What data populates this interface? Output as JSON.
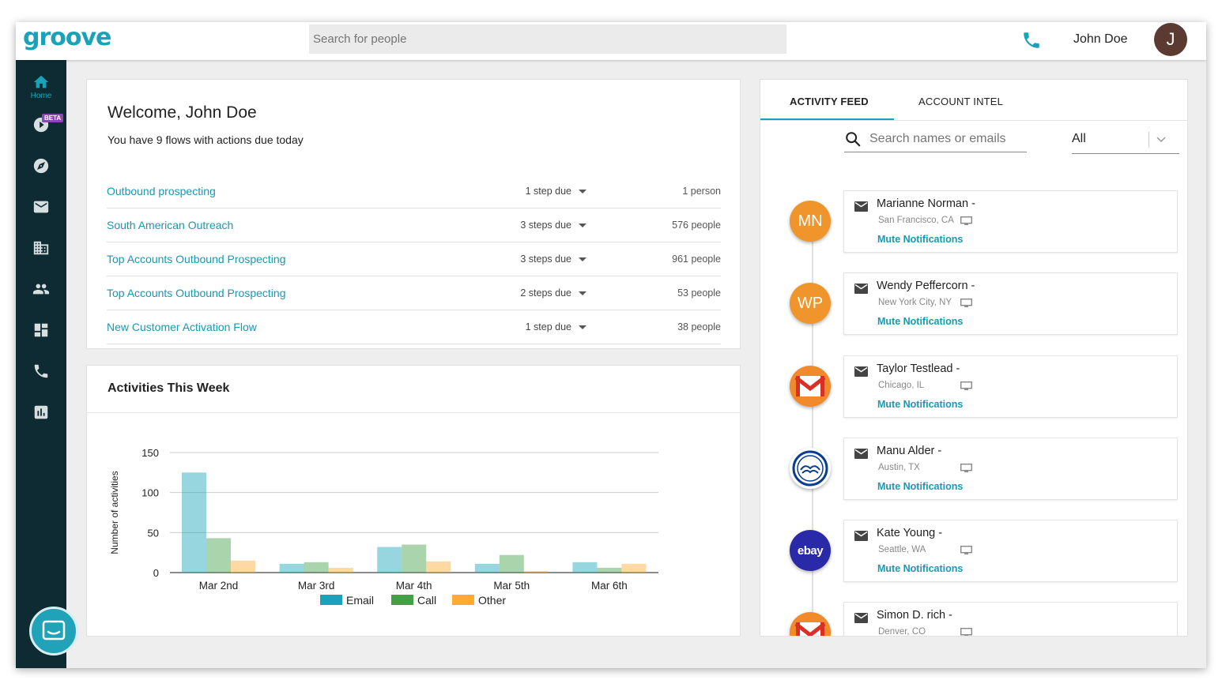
{
  "app": {
    "logo": "groove"
  },
  "header": {
    "search_placeholder": "Search for people",
    "user_name": "John Doe",
    "avatar_initial": "J"
  },
  "sidebar": {
    "home_label": "Home",
    "beta_label": "BETA"
  },
  "welcome": {
    "title": "Welcome, John Doe",
    "subtitle": "You have 9 flows with actions due today",
    "flows": [
      {
        "name": "Outbound prospecting",
        "steps": "1 step due",
        "people": "1 person"
      },
      {
        "name": "South American Outreach",
        "steps": "3 steps due",
        "people": "576 people"
      },
      {
        "name": "Top Accounts Outbound Prospecting",
        "steps": "3 steps due",
        "people": "961 people"
      },
      {
        "name": "Top Accounts Outbound Prospecting",
        "steps": "2 steps due",
        "people": "53 people"
      },
      {
        "name": "New Customer Activation Flow",
        "steps": "1 step due",
        "people": "38 people"
      }
    ]
  },
  "activity": {
    "title": "Activities This Week"
  },
  "chart_data": {
    "type": "bar",
    "title": "",
    "xlabel": "",
    "ylabel": "Number of activities",
    "categories": [
      "Mar 2nd",
      "Mar 3rd",
      "Mar 4th",
      "Mar 5th",
      "Mar 6th"
    ],
    "series": [
      {
        "name": "Email",
        "values": [
          125,
          11,
          32,
          11,
          13
        ],
        "color": "#1aa3b8"
      },
      {
        "name": "Call",
        "values": [
          43,
          13,
          35,
          22,
          6
        ],
        "color": "#43a047"
      },
      {
        "name": "Other",
        "values": [
          15,
          6,
          14,
          2,
          11
        ],
        "color": "#ffaa33"
      }
    ],
    "ylim": [
      0,
      150
    ],
    "yticks": [
      0,
      50,
      100,
      150
    ],
    "grid": true,
    "legend": "bottom"
  },
  "feed": {
    "tabs": [
      "ACTIVITY FEED",
      "ACCOUNT INTEL"
    ],
    "search_placeholder": "Search names or emails",
    "filter_value": "All",
    "mute_label": "Mute Notifications",
    "items": [
      {
        "name": "Marianne Norman -",
        "location": "San Francisco, CA",
        "avatar": "MN",
        "avatar_type": "initials",
        "avatar_color": "#f0952b"
      },
      {
        "name": "Wendy Peffercorn -",
        "location": "New York City, NY",
        "avatar": "WP",
        "avatar_type": "initials",
        "avatar_color": "#f0952b"
      },
      {
        "name": "Taylor Testlead -",
        "location": "Chicago, IL",
        "avatar": "gmail-icon",
        "avatar_type": "gmail"
      },
      {
        "name": "Manu Alder -",
        "location": "Austin, TX",
        "avatar": "allstate-logo",
        "avatar_type": "allstate"
      },
      {
        "name": "Kate Young -",
        "location": "Seattle, WA",
        "avatar": "ebay",
        "avatar_type": "ebay"
      },
      {
        "name": "Simon D. rich -",
        "location": "Denver, CO",
        "avatar": "gmail-icon",
        "avatar_type": "gmail"
      }
    ]
  }
}
